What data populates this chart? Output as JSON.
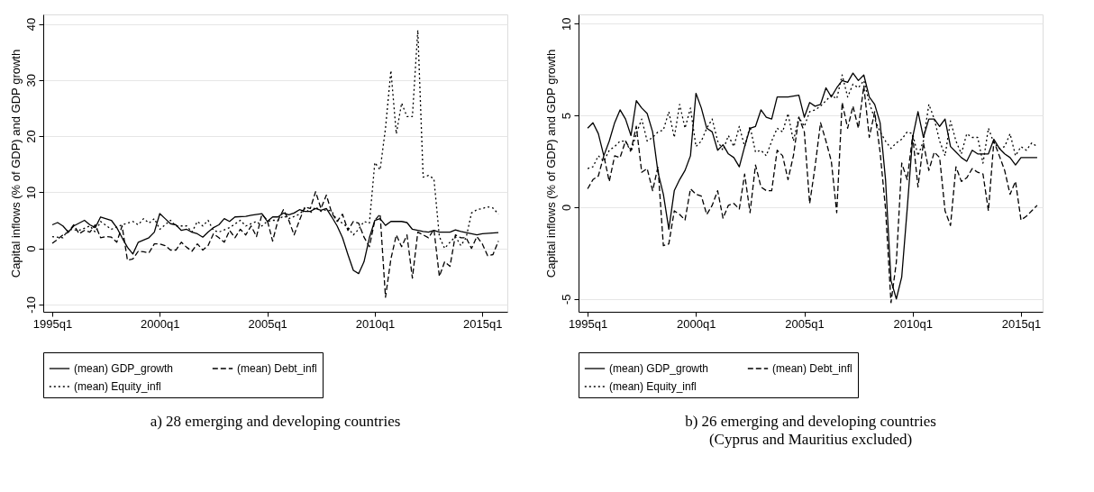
{
  "chart_data": [
    {
      "type": "line",
      "title": "a) 28 emerging and developing countries",
      "ylabel": "Capital inflows (% of GDP) and GDP growth",
      "x": [
        "1995-01",
        "1995-04",
        "1995-07",
        "1995-10",
        "1996-01",
        "1996-04",
        "1996-07",
        "1996-10",
        "1997-01",
        "1997-04",
        "1997-07",
        "1997-10",
        "1998-01",
        "1998-04",
        "1998-07",
        "1998-10",
        "1999-01",
        "1999-04",
        "1999-07",
        "1999-10",
        "2000-01",
        "2000-04",
        "2000-07",
        "2000-10",
        "2001-01",
        "2001-04",
        "2001-07",
        "2001-10",
        "2002-01",
        "2002-04",
        "2002-07",
        "2002-10",
        "2003-01",
        "2003-04",
        "2003-07",
        "2003-10",
        "2004-01",
        "2004-04",
        "2004-07",
        "2004-10",
        "2005-01",
        "2005-04",
        "2005-07",
        "2005-10",
        "2006-01",
        "2006-04",
        "2006-07",
        "2006-10",
        "2007-01",
        "2007-04",
        "2007-07",
        "2007-10",
        "2008-01",
        "2008-04",
        "2008-07",
        "2008-10",
        "2009-01",
        "2009-04",
        "2009-07",
        "2009-10",
        "2010-01",
        "2010-04",
        "2010-07",
        "2010-10",
        "2011-01",
        "2011-04",
        "2011-07",
        "2011-10",
        "2012-01",
        "2012-04",
        "2012-07",
        "2012-10",
        "2013-01",
        "2013-04",
        "2013-07",
        "2013-10",
        "2014-01",
        "2014-04",
        "2014-07",
        "2014-10",
        "2015-01",
        "2015-04",
        "2015-07",
        "2015-10"
      ],
      "xlim": [
        "1994-08",
        "2016-03"
      ],
      "xticks": [
        {
          "value": "1995-01",
          "label": "1995q1"
        },
        {
          "value": "2000-01",
          "label": "2000q1"
        },
        {
          "value": "2005-01",
          "label": "2005q1"
        },
        {
          "value": "2010-01",
          "label": "2010q1"
        },
        {
          "value": "2015-01",
          "label": "2015q1"
        }
      ],
      "ylim": [
        -11.3,
        41.7
      ],
      "yticks": [
        -10,
        0,
        10,
        20,
        30,
        40
      ],
      "grid": "y",
      "legend": "bottom",
      "series": [
        {
          "name": "(mean) GDP_growth",
          "color": "#000000",
          "line_style": "solid",
          "x": [
            "1995-01",
            "1995-04",
            "1995-07",
            "1995-10",
            "1996-01",
            "1996-07",
            "1996-10",
            "1997-01",
            "1997-04",
            "1997-10",
            "1998-01",
            "1998-04",
            "1998-07",
            "1998-10",
            "1999-01",
            "1999-07",
            "1999-10",
            "2000-01",
            "2000-04",
            "2000-07",
            "2000-10",
            "2001-01",
            "2001-04",
            "2001-07",
            "2001-10",
            "2002-01",
            "2002-04",
            "2002-07",
            "2002-10",
            "2003-01",
            "2003-04",
            "2003-07",
            "2004-01",
            "2004-04",
            "2004-10",
            "2005-01",
            "2005-04",
            "2005-07",
            "2005-10",
            "2006-01",
            "2006-04",
            "2006-07",
            "2006-10",
            "2007-01",
            "2007-04",
            "2007-07",
            "2007-10",
            "2008-01",
            "2008-04",
            "2008-07",
            "2008-10",
            "2009-01",
            "2009-04",
            "2009-07",
            "2009-10",
            "2010-01",
            "2010-04",
            "2010-07",
            "2010-10",
            "2011-01",
            "2011-04",
            "2011-07",
            "2011-10",
            "2012-01",
            "2012-04",
            "2012-07",
            "2012-10",
            "2013-01",
            "2013-07",
            "2013-10",
            "2014-01",
            "2014-07",
            "2014-10",
            "2015-01",
            "2015-10"
          ],
          "values": [
            4.2,
            4.6,
            4.0,
            2.9,
            4.0,
            5.0,
            4.2,
            3.7,
            5.6,
            5.0,
            3.7,
            1.9,
            0.2,
            -1.0,
            1.1,
            1.9,
            2.9,
            6.2,
            5.3,
            4.4,
            4.2,
            3.2,
            3.4,
            2.9,
            2.6,
            2.0,
            2.9,
            3.7,
            4.2,
            5.3,
            4.8,
            5.6,
            5.7,
            5.9,
            6.2,
            4.8,
            5.6,
            5.6,
            6.3,
            6.0,
            6.3,
            6.9,
            6.6,
            6.6,
            7.1,
            6.8,
            7.1,
            5.6,
            4.0,
            1.9,
            -1.1,
            -3.9,
            -4.5,
            -2.4,
            1.9,
            5.0,
            5.3,
            4.1,
            4.8,
            4.8,
            4.8,
            4.6,
            3.4,
            3.2,
            3.0,
            2.9,
            3.2,
            2.9,
            2.9,
            3.3,
            3.0,
            2.6,
            2.4,
            2.6,
            2.8
          ]
        },
        {
          "name": "(mean) Debt_infl",
          "color": "#000000",
          "line_style": "dashed",
          "values": [
            0.9,
            1.6,
            2.4,
            2.9,
            4.2,
            2.6,
            3.2,
            2.9,
            4.2,
            1.9,
            2.1,
            2.0,
            1.1,
            4.0,
            -2.1,
            -1.9,
            -0.5,
            -0.6,
            -0.8,
            0.8,
            0.8,
            0.5,
            -0.3,
            -0.3,
            1.1,
            0.2,
            -0.5,
            0.8,
            -0.3,
            0.5,
            2.6,
            1.9,
            1.1,
            3.2,
            1.9,
            3.4,
            2.4,
            4.0,
            2.1,
            6.1,
            5.0,
            1.3,
            5.0,
            6.9,
            5.0,
            2.4,
            5.0,
            7.4,
            7.1,
            10.1,
            7.1,
            9.5,
            6.3,
            4.8,
            6.1,
            3.2,
            4.8,
            4.5,
            2.0,
            0.3,
            5.0,
            6.1,
            -8.7,
            -1.9,
            2.4,
            0.3,
            2.4,
            -5.3,
            2.9,
            2.4,
            1.9,
            3.4,
            -5.0,
            -2.4,
            -3.2,
            2.4,
            1.9,
            1.9,
            0.0,
            2.1,
            0.8,
            -1.3,
            -1.1,
            1.3
          ]
        },
        {
          "name": "(mean) Equity_infl",
          "color": "#000000",
          "line_style": "dotted",
          "x": [
            "1995-01",
            "1995-07",
            "1995-10",
            "1996-04",
            "1996-10",
            "1997-01",
            "1997-04",
            "1997-10",
            "1998-04",
            "1998-10",
            "1999-01",
            "1999-04",
            "1999-07",
            "1999-10",
            "2000-01",
            "2000-04",
            "2000-07",
            "2000-10",
            "2001-04",
            "2001-07",
            "2001-10",
            "2002-01",
            "2002-04",
            "2002-07",
            "2002-10",
            "2003-04",
            "2003-10",
            "2004-01",
            "2004-07",
            "2004-10",
            "2005-01",
            "2005-04",
            "2005-07",
            "2005-10",
            "2006-01",
            "2006-07",
            "2006-10",
            "2007-01",
            "2007-04",
            "2007-07",
            "2007-10",
            "2008-01",
            "2008-04",
            "2008-07",
            "2008-10",
            "2009-01",
            "2009-04",
            "2009-07",
            "2009-10",
            "2010-01",
            "2010-04",
            "2010-07",
            "2010-10",
            "2011-01",
            "2011-04",
            "2011-07",
            "2011-10",
            "2012-01",
            "2012-04",
            "2012-07",
            "2012-10",
            "2013-01",
            "2013-04",
            "2013-07",
            "2013-10",
            "2014-01",
            "2014-04",
            "2014-07",
            "2014-10",
            "2015-01",
            "2015-04",
            "2015-07",
            "2015-10"
          ],
          "values": [
            2.1,
            1.9,
            3.4,
            3.2,
            4.0,
            2.9,
            4.8,
            3.4,
            4.2,
            4.8,
            4.2,
            5.3,
            4.5,
            5.3,
            3.4,
            4.2,
            5.0,
            4.0,
            4.0,
            2.9,
            4.8,
            4.0,
            5.0,
            3.2,
            2.9,
            3.7,
            5.0,
            4.0,
            4.8,
            4.0,
            4.8,
            5.0,
            5.0,
            5.8,
            5.3,
            6.1,
            7.1,
            6.3,
            7.4,
            6.6,
            6.9,
            6.6,
            5.0,
            4.5,
            3.7,
            2.4,
            3.4,
            4.8,
            4.5,
            15.3,
            14.0,
            21.4,
            31.7,
            20.4,
            25.9,
            23.5,
            23.5,
            38.9,
            12.7,
            13.0,
            12.4,
            2.1,
            0.0,
            1.1,
            2.1,
            0.5,
            1.9,
            6.3,
            6.9,
            7.1,
            7.4,
            7.2,
            6.1
          ]
        }
      ]
    },
    {
      "type": "line",
      "title": "b) 26 emerging and developing countries",
      "subtitle": "(Cyprus and Mauritius excluded)",
      "ylabel": "Capital inflows (% of GDP) and GDP growth",
      "x": [
        "1995-01",
        "1995-04",
        "1995-07",
        "1995-10",
        "1996-01",
        "1996-04",
        "1996-07",
        "1996-10",
        "1997-01",
        "1997-04",
        "1997-07",
        "1997-10",
        "1998-01",
        "1998-04",
        "1998-07",
        "1998-10",
        "1999-01",
        "1999-04",
        "1999-07",
        "1999-10",
        "2000-01",
        "2000-04",
        "2000-07",
        "2000-10",
        "2001-01",
        "2001-04",
        "2001-07",
        "2001-10",
        "2002-01",
        "2002-04",
        "2002-07",
        "2002-10",
        "2003-01",
        "2003-04",
        "2003-07",
        "2003-10",
        "2004-01",
        "2004-04",
        "2004-07",
        "2004-10",
        "2005-01",
        "2005-04",
        "2005-07",
        "2005-10",
        "2006-01",
        "2006-04",
        "2006-07",
        "2006-10",
        "2007-01",
        "2007-04",
        "2007-07",
        "2007-10",
        "2008-01",
        "2008-04",
        "2008-07",
        "2008-10",
        "2009-01",
        "2009-04",
        "2009-07",
        "2009-10",
        "2010-01",
        "2010-04",
        "2010-07",
        "2010-10",
        "2011-01",
        "2011-04",
        "2011-07",
        "2011-10",
        "2012-01",
        "2012-04",
        "2012-07",
        "2012-10",
        "2013-01",
        "2013-04",
        "2013-07",
        "2013-10",
        "2014-01",
        "2014-04",
        "2014-07",
        "2014-10",
        "2015-01",
        "2015-04",
        "2015-07",
        "2015-10"
      ],
      "xlim": [
        "1994-08",
        "2016-01"
      ],
      "xticks": [
        {
          "value": "1995-01",
          "label": "1995q1"
        },
        {
          "value": "2000-01",
          "label": "2000q1"
        },
        {
          "value": "2005-01",
          "label": "2005q1"
        },
        {
          "value": "2010-01",
          "label": "2010q1"
        },
        {
          "value": "2015-01",
          "label": "2015q1"
        }
      ],
      "ylim": [
        -5.7,
        10.5
      ],
      "yticks": [
        -5,
        0,
        5,
        10
      ],
      "grid": "y",
      "legend": "bottom",
      "series": [
        {
          "name": "(mean) GDP_growth",
          "color": "#000000",
          "line_style": "solid",
          "x": [
            "1995-01",
            "1995-04",
            "1995-07",
            "1995-10",
            "1996-01",
            "1996-04",
            "1996-07",
            "1996-10",
            "1997-01",
            "1997-04",
            "1997-07",
            "1997-10",
            "1998-01",
            "1998-04",
            "1998-07",
            "1998-10",
            "1999-01",
            "1999-04",
            "1999-07",
            "1999-10",
            "2000-01",
            "2000-04",
            "2000-07",
            "2000-10",
            "2001-01",
            "2001-04",
            "2001-07",
            "2001-10",
            "2002-01",
            "2002-04",
            "2002-07",
            "2002-10",
            "2003-01",
            "2003-04",
            "2003-07",
            "2003-10",
            "2004-04",
            "2004-10",
            "2005-01",
            "2005-04",
            "2005-07",
            "2005-10",
            "2006-01",
            "2006-04",
            "2006-07",
            "2006-10",
            "2007-01",
            "2007-04",
            "2007-07",
            "2007-10",
            "2008-01",
            "2008-04",
            "2008-07",
            "2008-10",
            "2009-01",
            "2009-04",
            "2009-07",
            "2009-10",
            "2010-01",
            "2010-04",
            "2010-07",
            "2010-10",
            "2011-01",
            "2011-04",
            "2011-07",
            "2011-10",
            "2012-01",
            "2012-04",
            "2012-07",
            "2012-10",
            "2013-01",
            "2013-04",
            "2013-07",
            "2013-10",
            "2014-01",
            "2014-04",
            "2014-07",
            "2014-10",
            "2015-01",
            "2015-04",
            "2015-10"
          ],
          "values": [
            4.3,
            4.6,
            4.0,
            2.8,
            3.6,
            4.6,
            5.3,
            4.8,
            3.9,
            5.8,
            5.4,
            5.1,
            4.1,
            1.9,
            0.7,
            -1.2,
            0.9,
            1.5,
            2.0,
            2.8,
            6.2,
            5.4,
            4.3,
            4.1,
            3.1,
            3.4,
            2.9,
            2.7,
            2.2,
            3.3,
            4.3,
            4.4,
            5.3,
            4.9,
            4.8,
            6.0,
            6.0,
            6.1,
            4.9,
            5.7,
            5.5,
            5.6,
            6.5,
            6.0,
            6.5,
            6.9,
            6.8,
            7.3,
            6.9,
            7.2,
            6.0,
            5.6,
            4.6,
            1.5,
            -4.0,
            -5.0,
            -3.8,
            -0.1,
            3.8,
            5.2,
            3.8,
            4.8,
            4.8,
            4.4,
            4.8,
            3.3,
            3.0,
            2.7,
            2.5,
            3.1,
            2.9,
            2.9,
            2.9,
            3.7,
            3.2,
            2.9,
            2.7,
            2.3,
            2.7,
            2.7,
            2.7
          ]
        },
        {
          "name": "(mean) Debt_infl",
          "color": "#000000",
          "line_style": "dashed",
          "values": [
            1.0,
            1.5,
            1.7,
            2.8,
            1.4,
            2.8,
            2.7,
            3.6,
            3.1,
            4.4,
            1.9,
            2.1,
            0.9,
            2.2,
            -2.1,
            -2.0,
            -0.2,
            -0.4,
            -0.7,
            1.0,
            0.7,
            0.6,
            -0.4,
            0.1,
            0.9,
            -0.6,
            0.1,
            0.2,
            -0.1,
            1.8,
            -0.3,
            2.3,
            1.1,
            0.9,
            0.9,
            3.1,
            2.8,
            1.5,
            2.8,
            4.9,
            4.1,
            0.2,
            2.2,
            4.6,
            3.6,
            2.5,
            -0.3,
            5.7,
            4.3,
            5.5,
            4.3,
            6.6,
            3.8,
            5.2,
            3.0,
            -0.1,
            -5.2,
            -3.0,
            2.4,
            1.5,
            3.9,
            1.1,
            3.5,
            2.0,
            3.0,
            2.7,
            -0.2,
            -1.0,
            2.2,
            1.4,
            1.6,
            2.1,
            1.9,
            1.8,
            -0.2,
            3.6,
            2.8,
            2.0,
            0.7,
            1.4,
            -0.7,
            -0.5,
            -0.2,
            0.1
          ]
        },
        {
          "name": "(mean) Equity_infl",
          "color": "#000000",
          "line_style": "dotted",
          "values": [
            2.1,
            2.2,
            2.8,
            2.5,
            3.1,
            3.3,
            3.6,
            3.6,
            3.0,
            4.0,
            4.8,
            3.6,
            3.8,
            4.1,
            4.2,
            5.2,
            3.8,
            5.6,
            4.3,
            5.4,
            3.3,
            3.6,
            4.3,
            4.8,
            3.6,
            3.1,
            3.9,
            3.3,
            4.4,
            3.3,
            4.4,
            3.0,
            3.1,
            2.8,
            3.6,
            4.3,
            4.1,
            5.1,
            3.6,
            4.9,
            4.4,
            5.2,
            5.3,
            5.5,
            5.8,
            6.1,
            5.9,
            7.2,
            6.0,
            6.7,
            6.5,
            6.9,
            5.7,
            4.8,
            4.1,
            3.6,
            3.2,
            3.5,
            3.7,
            4.1,
            4.0,
            2.8,
            3.6,
            5.6,
            4.8,
            3.6,
            2.8,
            4.7,
            3.6,
            2.9,
            4.0,
            3.8,
            3.8,
            2.4,
            4.3,
            3.5,
            3.2,
            3.3,
            4.0,
            2.8,
            3.3,
            3.1,
            3.5,
            3.3
          ]
        }
      ]
    }
  ]
}
